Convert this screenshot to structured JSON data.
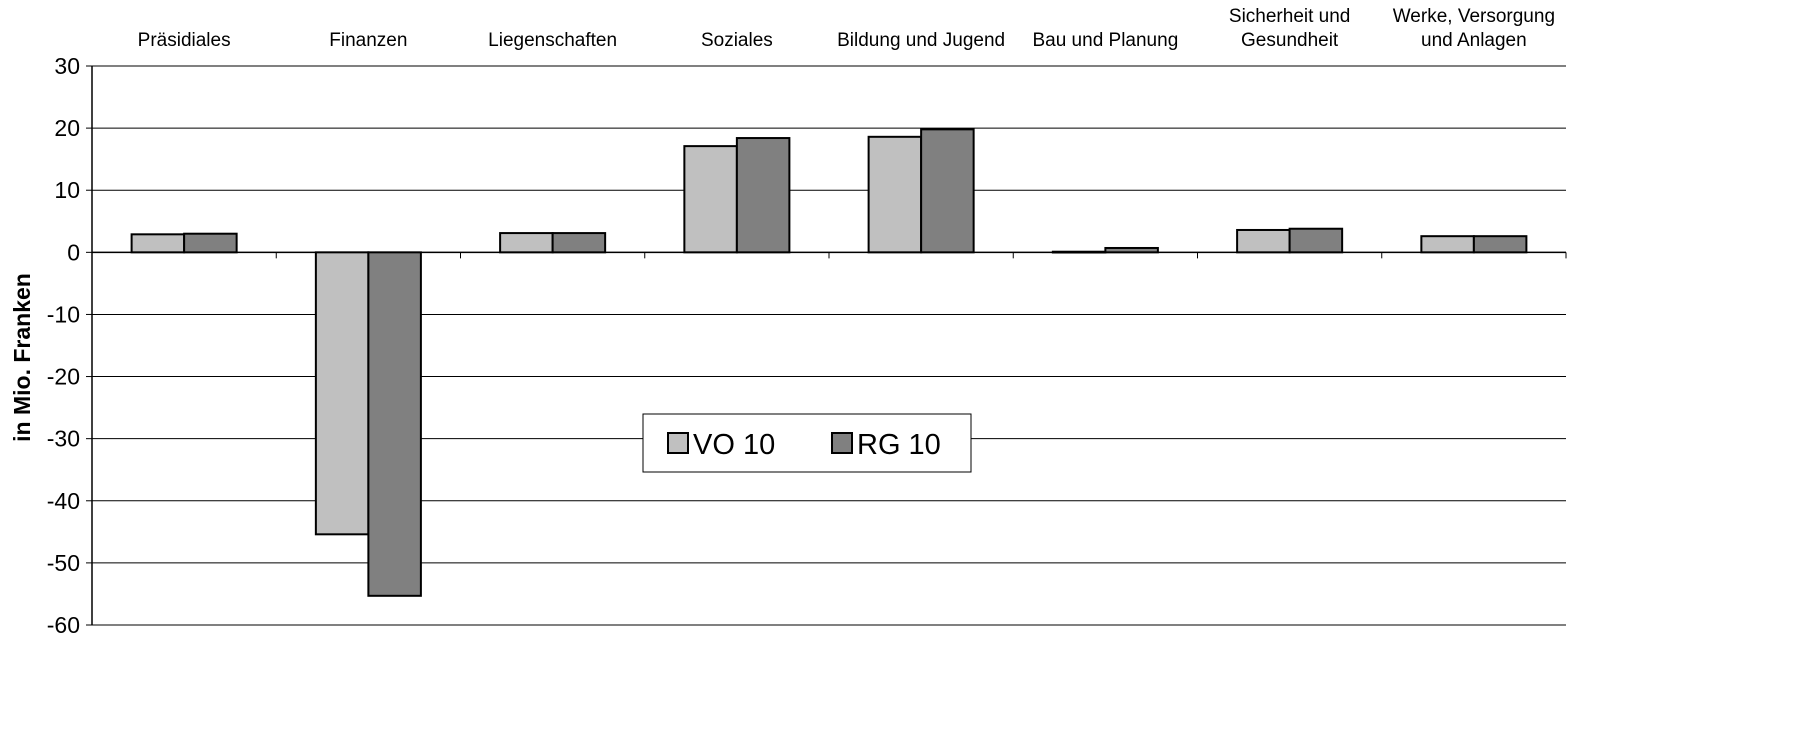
{
  "chart_data": {
    "type": "bar",
    "title": "",
    "xlabel": "",
    "ylabel": "in Mio. Franken",
    "ylim": [
      -60,
      30
    ],
    "yticks": [
      30,
      20,
      10,
      0,
      -10,
      -20,
      -30,
      -40,
      -50,
      -60
    ],
    "grid": true,
    "legend_position": "center",
    "categories": [
      [
        "Präsidiales"
      ],
      [
        "Finanzen"
      ],
      [
        "Liegenschaften"
      ],
      [
        "Soziales"
      ],
      [
        "Bildung und Jugend"
      ],
      [
        "Bau und Planung"
      ],
      [
        "Sicherheit und",
        "Gesundheit"
      ],
      [
        "Werke, Versorgung",
        "und Anlagen"
      ]
    ],
    "series": [
      {
        "name": "VO 10",
        "color": "#c0c0c0",
        "values": [
          2.9,
          -45.4,
          3.1,
          17.1,
          18.6,
          0.1,
          3.6,
          2.6
        ]
      },
      {
        "name": "RG 10",
        "color": "#808080",
        "values": [
          3.0,
          -55.3,
          3.1,
          18.4,
          19.8,
          0.7,
          3.8,
          2.6
        ]
      }
    ]
  }
}
